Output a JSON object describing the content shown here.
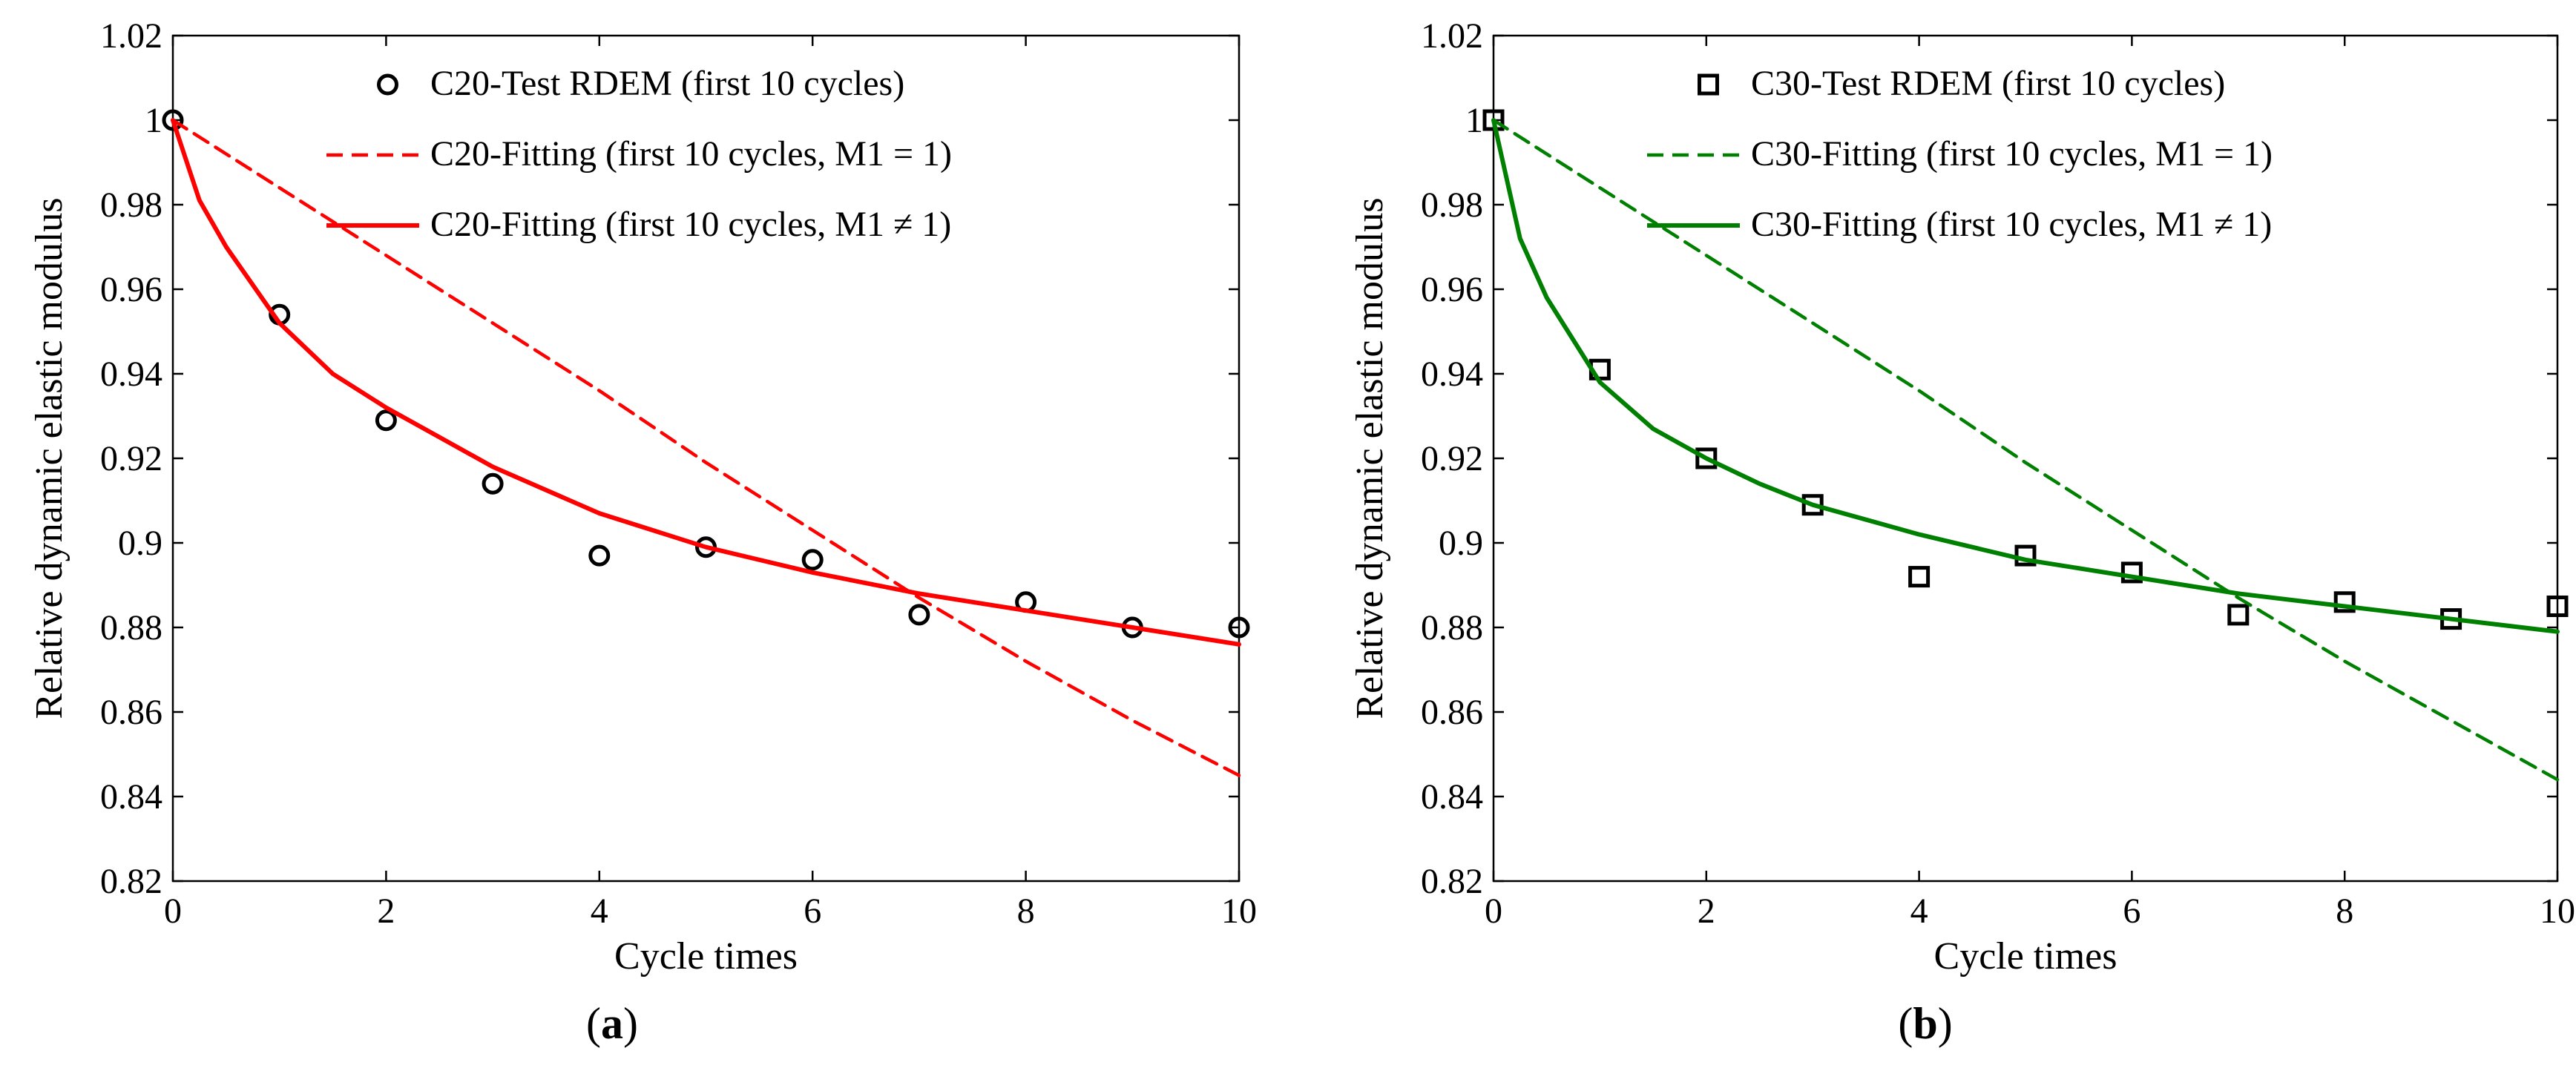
{
  "panels": [
    {
      "caption_letter": "a",
      "colors": {
        "fit": "#ff0000",
        "marker": "#000000"
      },
      "legend": [
        "C20-Test RDEM (first 10 cycles)",
        "C20-Fitting (first 10 cycles, M1 = 1)",
        "C20-Fitting (first 10 cycles, M1 ≠ 1)"
      ]
    },
    {
      "caption_letter": "b",
      "colors": {
        "fit": "#008000",
        "marker": "#000000"
      },
      "legend": [
        "C30-Test RDEM (first 10 cycles)",
        "C30-Fitting (first 10 cycles, M1 = 1)",
        "C30-Fitting (first 10 cycles, M1 ≠ 1)"
      ]
    }
  ],
  "chart_data": [
    {
      "type": "line",
      "title": "",
      "xlabel": "Cycle times",
      "ylabel": "Relative dynamic elastic modulus",
      "xlim": [
        0,
        10
      ],
      "ylim": [
        0.82,
        1.02
      ],
      "xticks": [
        "0",
        "2",
        "4",
        "6",
        "8",
        "10"
      ],
      "yticks": [
        "0.82",
        "0.84",
        "0.86",
        "0.88",
        "0.9",
        "0.92",
        "0.94",
        "0.96",
        "0.98",
        "1",
        "1.02"
      ],
      "legend_position": "top-right",
      "grid": false,
      "series": [
        {
          "name": "C20-Test RDEM (first 10 cycles)",
          "style": "marker-circle",
          "x": [
            0,
            1,
            2,
            3,
            4,
            5,
            6,
            7,
            8,
            9,
            10
          ],
          "y": [
            1.0,
            0.954,
            0.929,
            0.914,
            0.897,
            0.899,
            0.896,
            0.883,
            0.886,
            0.88,
            0.88
          ]
        },
        {
          "name": "C20-Fitting (first 10 cycles, M1 = 1)",
          "style": "dashed",
          "x": [
            0,
            1,
            2,
            3,
            4,
            5,
            6,
            7,
            8,
            9,
            10
          ],
          "y": [
            1.0,
            0.984,
            0.968,
            0.952,
            0.936,
            0.919,
            0.903,
            0.887,
            0.872,
            0.858,
            0.845
          ]
        },
        {
          "name": "C20-Fitting (first 10 cycles, M1 ≠ 1)",
          "style": "solid",
          "x": [
            0,
            0.25,
            0.5,
            1,
            1.5,
            2,
            2.5,
            3,
            4,
            5,
            6,
            7,
            8,
            9,
            10
          ],
          "y": [
            1.0,
            0.981,
            0.97,
            0.952,
            0.94,
            0.932,
            0.925,
            0.918,
            0.907,
            0.899,
            0.893,
            0.888,
            0.884,
            0.88,
            0.876
          ]
        }
      ]
    },
    {
      "type": "line",
      "title": "",
      "xlabel": "Cycle times",
      "ylabel": "Relative dynamic elastic modulus",
      "xlim": [
        0,
        10
      ],
      "ylim": [
        0.82,
        1.02
      ],
      "xticks": [
        "0",
        "2",
        "4",
        "6",
        "8",
        "10"
      ],
      "yticks": [
        "0.82",
        "0.84",
        "0.86",
        "0.88",
        "0.9",
        "0.92",
        "0.94",
        "0.96",
        "0.98",
        "1",
        "1.02"
      ],
      "legend_position": "top-right",
      "grid": false,
      "series": [
        {
          "name": "C30-Test RDEM (first 10 cycles)",
          "style": "marker-square",
          "x": [
            0,
            1,
            2,
            3,
            4,
            5,
            6,
            7,
            8,
            9,
            10
          ],
          "y": [
            1.0,
            0.941,
            0.92,
            0.909,
            0.892,
            0.897,
            0.893,
            0.883,
            0.886,
            0.882,
            0.885
          ]
        },
        {
          "name": "C30-Fitting (first 10 cycles, M1 = 1)",
          "style": "dashed",
          "x": [
            0,
            1,
            2,
            3,
            4,
            5,
            6,
            7,
            8,
            9,
            10
          ],
          "y": [
            1.0,
            0.984,
            0.968,
            0.952,
            0.936,
            0.919,
            0.903,
            0.887,
            0.872,
            0.858,
            0.844
          ]
        },
        {
          "name": "C30-Fitting (first 10 cycles, M1 ≠ 1)",
          "style": "solid",
          "x": [
            0,
            0.25,
            0.5,
            1,
            1.5,
            2,
            2.5,
            3,
            4,
            5,
            6,
            7,
            8,
            9,
            10
          ],
          "y": [
            1.0,
            0.972,
            0.958,
            0.938,
            0.927,
            0.92,
            0.914,
            0.909,
            0.902,
            0.896,
            0.892,
            0.888,
            0.885,
            0.882,
            0.879
          ]
        }
      ]
    }
  ]
}
